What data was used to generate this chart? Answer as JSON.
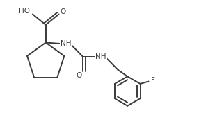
{
  "bg_color": "#ffffff",
  "line_color": "#3a3a3a",
  "fig_width": 3.09,
  "fig_height": 1.79,
  "dpi": 100,
  "font_size": 7.5,
  "line_width": 1.4,
  "xlim": [
    0,
    9
  ],
  "ylim": [
    0,
    5.2
  ]
}
